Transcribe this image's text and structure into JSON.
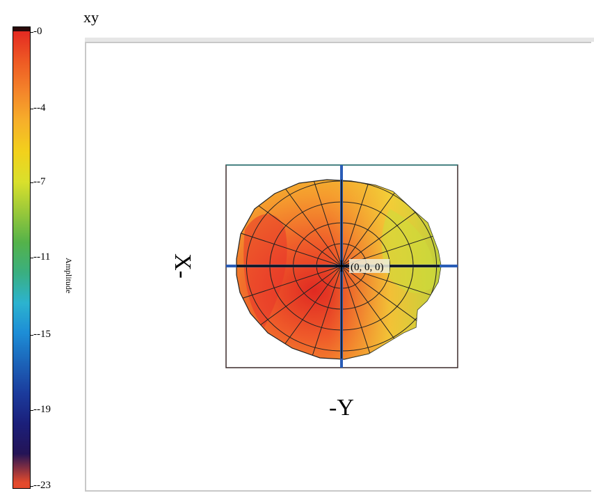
{
  "view": {
    "title": "xy"
  },
  "colorbar": {
    "title": "Amplitude",
    "ticks": [
      "-0",
      "--4",
      "--7",
      "--11",
      "--15",
      "--19",
      "--23"
    ],
    "tick_values": [
      0,
      -4,
      -7,
      -11,
      -15,
      -19,
      -23
    ],
    "colors": [
      "#2b0a0a",
      "#e42a22",
      "#ee5a24",
      "#f4852a",
      "#f6b02a",
      "#f2d11c",
      "#d9e02c",
      "#98c83a",
      "#54b24a",
      "#3aaf80",
      "#2cb3cf",
      "#1d8dd6",
      "#1c63b8",
      "#1b3b9c",
      "#1b1f7a",
      "#241456",
      "#e34a2c"
    ]
  },
  "chart_data": {
    "type": "heatmap",
    "title": "xy",
    "xlabel": "-Y",
    "ylabel": "X-",
    "colorbar_label": "Amplitude",
    "colorbar_range": [
      -23,
      0
    ],
    "origin_label": "(0, 0, 0)",
    "grid": "polar",
    "values_note_regions": [
      {
        "region": "left / lower-left",
        "amplitude_approx": -1
      },
      {
        "region": "top / center",
        "amplitude_approx": -4
      },
      {
        "region": "right",
        "amplitude_approx": -7
      },
      {
        "region": "lower-right notch",
        "amplitude_approx": -9
      }
    ]
  }
}
